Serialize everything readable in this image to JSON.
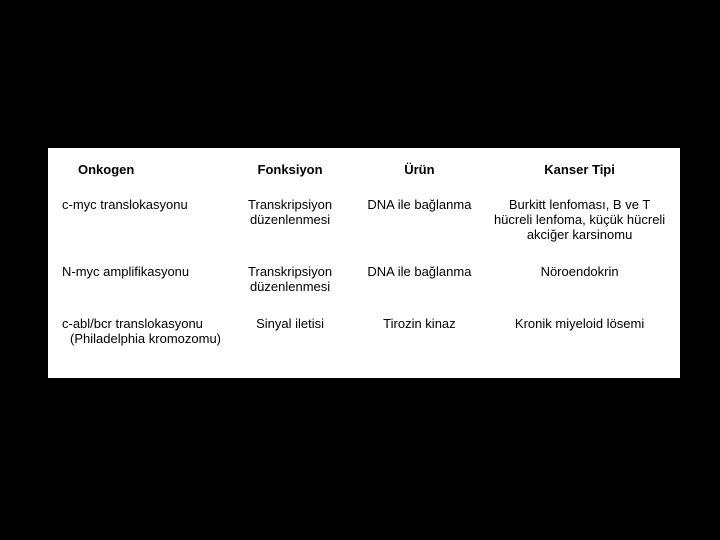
{
  "table": {
    "background_color": "#ffffff",
    "page_background": "#000000",
    "font_family": "Arial",
    "header_fontsize": 13,
    "cell_fontsize": 13,
    "text_color": "#000000",
    "columns": [
      {
        "key": "onkogen",
        "label": "Onkogen"
      },
      {
        "key": "fonksiyon",
        "label": "Fonksiyon"
      },
      {
        "key": "urun",
        "label": "Ürün"
      },
      {
        "key": "kanser_tipi",
        "label": "Kanser Tipi"
      }
    ],
    "rows": [
      {
        "onkogen": "c-myc translokasyonu",
        "onkogen_sub": "",
        "fonksiyon": "Transkripsiyon düzenlenmesi",
        "urun": "DNA ile bağlanma",
        "kanser_tipi": "Burkitt lenfoması, B ve T hücreli lenfoma, küçük hücreli akciğer karsinomu"
      },
      {
        "onkogen": "N-myc amplifikasyonu",
        "onkogen_sub": "",
        "fonksiyon": "Transkripsiyon düzenlenmesi",
        "urun": "DNA ile bağlanma",
        "kanser_tipi": "Nöroendokrin"
      },
      {
        "onkogen": "c-abl/bcr translokasyonu",
        "onkogen_sub": "(Philadelphia kromozomu)",
        "fonksiyon": "Sinyal iletisi",
        "urun": "Tirozin kinaz",
        "kanser_tipi": "Kronik miyeloid lösemi"
      }
    ]
  }
}
